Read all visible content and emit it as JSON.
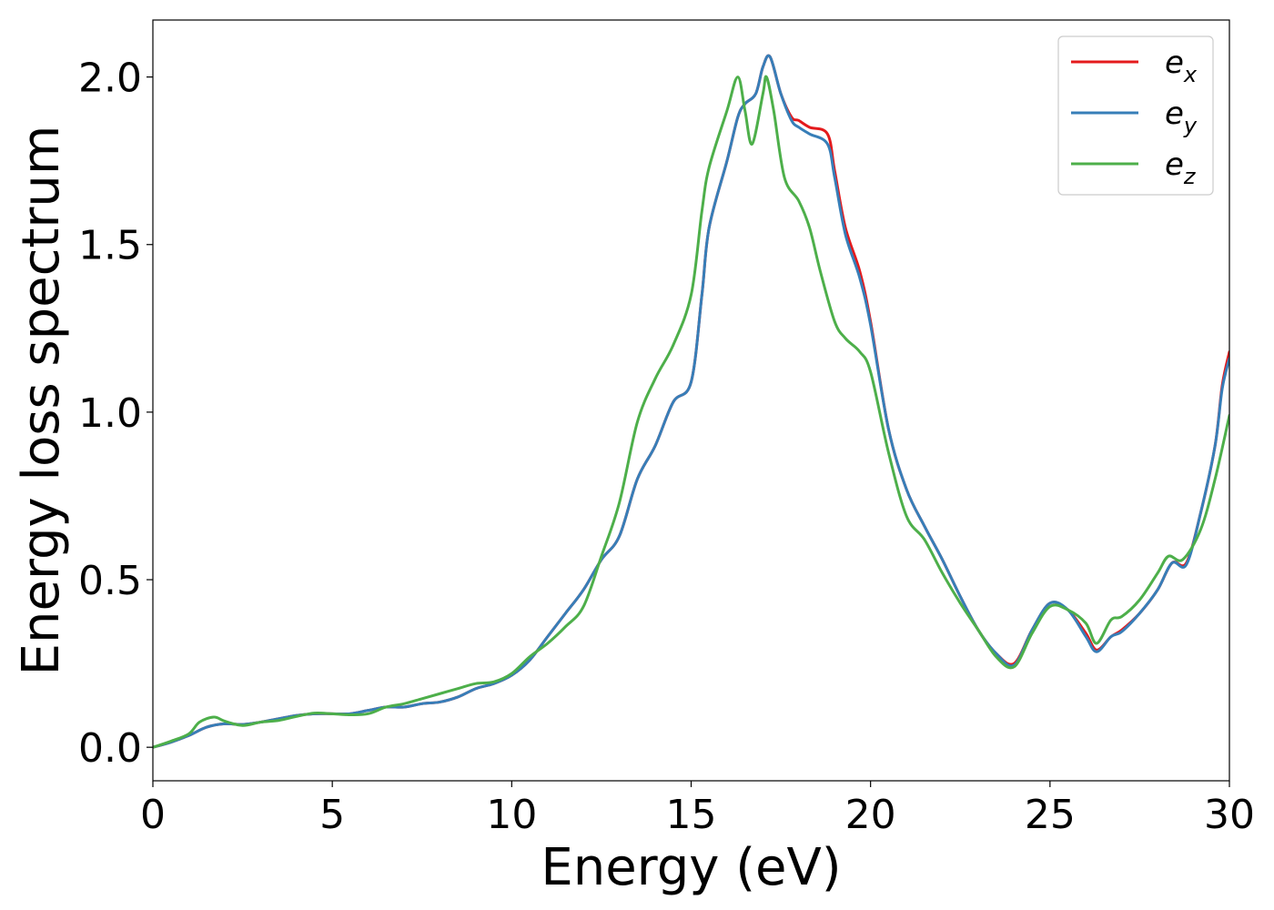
{
  "chart_data": {
    "type": "line",
    "xlabel": "Energy (eV)",
    "ylabel": "Energy loss spectrum",
    "xlim": [
      0,
      30
    ],
    "ylim": [
      -0.1,
      2.17
    ],
    "xticks": [
      0,
      5,
      10,
      15,
      20,
      25,
      30
    ],
    "yticks": [
      0.0,
      0.5,
      1.0,
      1.5,
      2.0
    ],
    "xtick_labels": [
      "0",
      "5",
      "10",
      "15",
      "20",
      "25",
      "30"
    ],
    "ytick_labels": [
      "0.0",
      "0.5",
      "1.0",
      "1.5",
      "2.0"
    ],
    "grid": false,
    "legend_position": "top-right",
    "series": [
      {
        "name": "ex",
        "label_base": "e",
        "label_sub": "x",
        "color": "#e41a1c",
        "points": [
          [
            0,
            0
          ],
          [
            0.5,
            0.015
          ],
          [
            1,
            0.035
          ],
          [
            1.5,
            0.06
          ],
          [
            2,
            0.07
          ],
          [
            2.5,
            0.068
          ],
          [
            3,
            0.075
          ],
          [
            3.5,
            0.085
          ],
          [
            4,
            0.095
          ],
          [
            4.5,
            0.1
          ],
          [
            5,
            0.1
          ],
          [
            5.5,
            0.1
          ],
          [
            6,
            0.11
          ],
          [
            6.5,
            0.12
          ],
          [
            7,
            0.12
          ],
          [
            7.5,
            0.13
          ],
          [
            8,
            0.135
          ],
          [
            8.5,
            0.15
          ],
          [
            9,
            0.175
          ],
          [
            9.5,
            0.19
          ],
          [
            10,
            0.215
          ],
          [
            10.5,
            0.26
          ],
          [
            11,
            0.33
          ],
          [
            11.5,
            0.4
          ],
          [
            12,
            0.47
          ],
          [
            12.5,
            0.56
          ],
          [
            13,
            0.63
          ],
          [
            13.5,
            0.8
          ],
          [
            14,
            0.9
          ],
          [
            14.5,
            1.03
          ],
          [
            15,
            1.09
          ],
          [
            15.3,
            1.35
          ],
          [
            15.5,
            1.55
          ],
          [
            16,
            1.75
          ],
          [
            16.3,
            1.88
          ],
          [
            16.5,
            1.92
          ],
          [
            16.8,
            1.95
          ],
          [
            17,
            2.03
          ],
          [
            17.2,
            2.06
          ],
          [
            17.5,
            1.95
          ],
          [
            17.8,
            1.88
          ],
          [
            18,
            1.87
          ],
          [
            18.3,
            1.85
          ],
          [
            18.8,
            1.83
          ],
          [
            19,
            1.72
          ],
          [
            19.3,
            1.55
          ],
          [
            19.7,
            1.42
          ],
          [
            20,
            1.27
          ],
          [
            20.5,
            0.95
          ],
          [
            21,
            0.77
          ],
          [
            21.5,
            0.66
          ],
          [
            22,
            0.56
          ],
          [
            22.5,
            0.45
          ],
          [
            23,
            0.35
          ],
          [
            23.5,
            0.28
          ],
          [
            24,
            0.25
          ],
          [
            24.5,
            0.35
          ],
          [
            25,
            0.43
          ],
          [
            25.5,
            0.41
          ],
          [
            26,
            0.34
          ],
          [
            26.3,
            0.29
          ],
          [
            26.7,
            0.33
          ],
          [
            27,
            0.35
          ],
          [
            27.5,
            0.4
          ],
          [
            28,
            0.47
          ],
          [
            28.4,
            0.55
          ],
          [
            28.8,
            0.55
          ],
          [
            29.2,
            0.7
          ],
          [
            29.6,
            0.9
          ],
          [
            29.8,
            1.08
          ],
          [
            30,
            1.18
          ]
        ]
      },
      {
        "name": "ey",
        "label_base": "e",
        "label_sub": "y",
        "color": "#377eb8",
        "points": [
          [
            0,
            0
          ],
          [
            0.5,
            0.015
          ],
          [
            1,
            0.035
          ],
          [
            1.5,
            0.06
          ],
          [
            2,
            0.07
          ],
          [
            2.5,
            0.068
          ],
          [
            3,
            0.075
          ],
          [
            3.5,
            0.085
          ],
          [
            4,
            0.095
          ],
          [
            4.5,
            0.1
          ],
          [
            5,
            0.1
          ],
          [
            5.5,
            0.1
          ],
          [
            6,
            0.11
          ],
          [
            6.5,
            0.12
          ],
          [
            7,
            0.12
          ],
          [
            7.5,
            0.13
          ],
          [
            8,
            0.135
          ],
          [
            8.5,
            0.15
          ],
          [
            9,
            0.175
          ],
          [
            9.5,
            0.19
          ],
          [
            10,
            0.215
          ],
          [
            10.5,
            0.26
          ],
          [
            11,
            0.33
          ],
          [
            11.5,
            0.4
          ],
          [
            12,
            0.47
          ],
          [
            12.5,
            0.56
          ],
          [
            13,
            0.63
          ],
          [
            13.5,
            0.8
          ],
          [
            14,
            0.9
          ],
          [
            14.5,
            1.03
          ],
          [
            15,
            1.09
          ],
          [
            15.3,
            1.35
          ],
          [
            15.5,
            1.55
          ],
          [
            16,
            1.75
          ],
          [
            16.3,
            1.88
          ],
          [
            16.5,
            1.92
          ],
          [
            16.8,
            1.95
          ],
          [
            17,
            2.03
          ],
          [
            17.2,
            2.06
          ],
          [
            17.5,
            1.95
          ],
          [
            17.8,
            1.87
          ],
          [
            18,
            1.85
          ],
          [
            18.3,
            1.83
          ],
          [
            18.8,
            1.8
          ],
          [
            19,
            1.7
          ],
          [
            19.3,
            1.53
          ],
          [
            19.7,
            1.4
          ],
          [
            20,
            1.26
          ],
          [
            20.5,
            0.95
          ],
          [
            21,
            0.77
          ],
          [
            21.5,
            0.66
          ],
          [
            22,
            0.56
          ],
          [
            22.5,
            0.45
          ],
          [
            23,
            0.35
          ],
          [
            23.5,
            0.28
          ],
          [
            24,
            0.245
          ],
          [
            24.5,
            0.35
          ],
          [
            25,
            0.43
          ],
          [
            25.5,
            0.41
          ],
          [
            26,
            0.33
          ],
          [
            26.3,
            0.285
          ],
          [
            26.7,
            0.33
          ],
          [
            27,
            0.345
          ],
          [
            27.5,
            0.4
          ],
          [
            28,
            0.47
          ],
          [
            28.4,
            0.55
          ],
          [
            28.8,
            0.545
          ],
          [
            29.2,
            0.7
          ],
          [
            29.6,
            0.9
          ],
          [
            29.8,
            1.07
          ],
          [
            30,
            1.16
          ]
        ]
      },
      {
        "name": "ez",
        "label_base": "e",
        "label_sub": "z",
        "color": "#4daf4a",
        "points": [
          [
            0,
            0
          ],
          [
            0.5,
            0.018
          ],
          [
            1,
            0.04
          ],
          [
            1.3,
            0.075
          ],
          [
            1.7,
            0.09
          ],
          [
            2,
            0.078
          ],
          [
            2.5,
            0.065
          ],
          [
            3,
            0.075
          ],
          [
            3.5,
            0.08
          ],
          [
            4,
            0.092
          ],
          [
            4.5,
            0.102
          ],
          [
            5,
            0.1
          ],
          [
            5.5,
            0.097
          ],
          [
            6,
            0.1
          ],
          [
            6.5,
            0.12
          ],
          [
            7,
            0.13
          ],
          [
            7.5,
            0.145
          ],
          [
            8,
            0.16
          ],
          [
            8.5,
            0.175
          ],
          [
            9,
            0.19
          ],
          [
            9.5,
            0.195
          ],
          [
            10,
            0.22
          ],
          [
            10.5,
            0.27
          ],
          [
            11,
            0.31
          ],
          [
            11.5,
            0.36
          ],
          [
            12,
            0.42
          ],
          [
            12.5,
            0.57
          ],
          [
            13,
            0.73
          ],
          [
            13.5,
            0.97
          ],
          [
            14,
            1.1
          ],
          [
            14.5,
            1.2
          ],
          [
            15,
            1.35
          ],
          [
            15.3,
            1.6
          ],
          [
            15.5,
            1.73
          ],
          [
            16,
            1.9
          ],
          [
            16.3,
            2.0
          ],
          [
            16.5,
            1.9
          ],
          [
            16.7,
            1.8
          ],
          [
            17,
            1.95
          ],
          [
            17.1,
            2.0
          ],
          [
            17.3,
            1.9
          ],
          [
            17.6,
            1.7
          ],
          [
            18,
            1.63
          ],
          [
            18.3,
            1.55
          ],
          [
            18.6,
            1.42
          ],
          [
            19,
            1.27
          ],
          [
            19.3,
            1.22
          ],
          [
            19.7,
            1.18
          ],
          [
            20,
            1.12
          ],
          [
            20.5,
            0.88
          ],
          [
            21,
            0.69
          ],
          [
            21.5,
            0.62
          ],
          [
            22,
            0.52
          ],
          [
            22.5,
            0.43
          ],
          [
            23,
            0.35
          ],
          [
            23.5,
            0.27
          ],
          [
            24,
            0.24
          ],
          [
            24.5,
            0.34
          ],
          [
            25,
            0.42
          ],
          [
            25.5,
            0.41
          ],
          [
            26,
            0.37
          ],
          [
            26.3,
            0.31
          ],
          [
            26.7,
            0.38
          ],
          [
            27,
            0.39
          ],
          [
            27.5,
            0.44
          ],
          [
            28,
            0.52
          ],
          [
            28.3,
            0.57
          ],
          [
            28.7,
            0.56
          ],
          [
            29.2,
            0.65
          ],
          [
            29.6,
            0.8
          ],
          [
            30,
            0.99
          ]
        ]
      }
    ]
  }
}
